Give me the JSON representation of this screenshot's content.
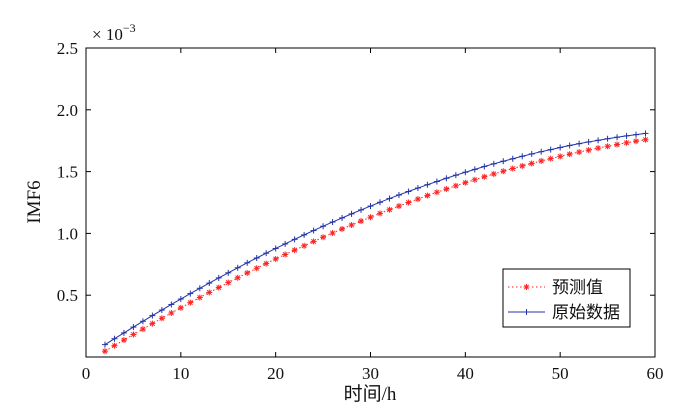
{
  "chart_data": {
    "type": "line",
    "xlabel": "时间/h",
    "ylabel": "IMF6",
    "y_multiplier_base": "× 10",
    "y_multiplier_exp": "−3",
    "xlim": [
      0,
      60
    ],
    "ylim": [
      0,
      2.5
    ],
    "x_ticks": [
      0,
      10,
      20,
      30,
      40,
      50,
      60
    ],
    "x_tick_labels": [
      "0",
      "10",
      "20",
      "30",
      "40",
      "50",
      "60"
    ],
    "y_ticks": [
      0.5,
      1.0,
      1.5,
      2.0,
      2.5
    ],
    "y_tick_labels": [
      "0.5",
      "1.0",
      "1.5",
      "2.0",
      "2.5"
    ],
    "grid": false,
    "legend_position": "bottom-right",
    "series": [
      {
        "name": "预测值",
        "color": "#ff2222",
        "line_style": "dotted",
        "marker": "star",
        "x": [
          2,
          3,
          4,
          5,
          6,
          7,
          8,
          9,
          10,
          11,
          12,
          13,
          14,
          15,
          16,
          17,
          18,
          19,
          20,
          21,
          22,
          23,
          24,
          25,
          26,
          27,
          28,
          29,
          30,
          31,
          32,
          33,
          34,
          35,
          36,
          37,
          38,
          39,
          40,
          41,
          42,
          43,
          44,
          45,
          46,
          47,
          48,
          49,
          50,
          51,
          52,
          53,
          54,
          55,
          56,
          57,
          58,
          59
        ],
        "y": [
          0.047,
          0.092,
          0.137,
          0.182,
          0.226,
          0.27,
          0.313,
          0.356,
          0.398,
          0.44,
          0.481,
          0.522,
          0.562,
          0.602,
          0.641,
          0.68,
          0.718,
          0.756,
          0.793,
          0.829,
          0.865,
          0.9,
          0.935,
          0.969,
          1.003,
          1.036,
          1.068,
          1.1,
          1.131,
          1.162,
          1.192,
          1.221,
          1.25,
          1.278,
          1.306,
          1.333,
          1.359,
          1.385,
          1.41,
          1.434,
          1.458,
          1.481,
          1.503,
          1.525,
          1.546,
          1.566,
          1.586,
          1.605,
          1.623,
          1.641,
          1.658,
          1.674,
          1.69,
          1.705,
          1.719,
          1.733,
          1.746,
          1.758
        ]
      },
      {
        "name": "原始数据",
        "color": "#2233aa",
        "line_style": "solid",
        "marker": "plus",
        "x": [
          2,
          3,
          4,
          5,
          6,
          7,
          8,
          9,
          10,
          11,
          12,
          13,
          14,
          15,
          16,
          17,
          18,
          19,
          20,
          21,
          22,
          23,
          24,
          25,
          26,
          27,
          28,
          29,
          30,
          31,
          32,
          33,
          34,
          35,
          36,
          37,
          38,
          39,
          40,
          41,
          42,
          43,
          44,
          45,
          46,
          47,
          48,
          49,
          50,
          51,
          52,
          53,
          54,
          55,
          56,
          57,
          58,
          59
        ],
        "y": [
          0.1,
          0.148,
          0.195,
          0.242,
          0.289,
          0.335,
          0.38,
          0.425,
          0.469,
          0.513,
          0.556,
          0.598,
          0.64,
          0.681,
          0.722,
          0.762,
          0.801,
          0.84,
          0.878,
          0.915,
          0.952,
          0.988,
          1.023,
          1.058,
          1.092,
          1.125,
          1.158,
          1.19,
          1.221,
          1.252,
          1.282,
          1.311,
          1.339,
          1.367,
          1.394,
          1.42,
          1.446,
          1.471,
          1.495,
          1.518,
          1.541,
          1.563,
          1.584,
          1.604,
          1.624,
          1.643,
          1.661,
          1.678,
          1.695,
          1.711,
          1.726,
          1.74,
          1.753,
          1.766,
          1.778,
          1.789,
          1.799,
          1.809
        ]
      }
    ]
  }
}
